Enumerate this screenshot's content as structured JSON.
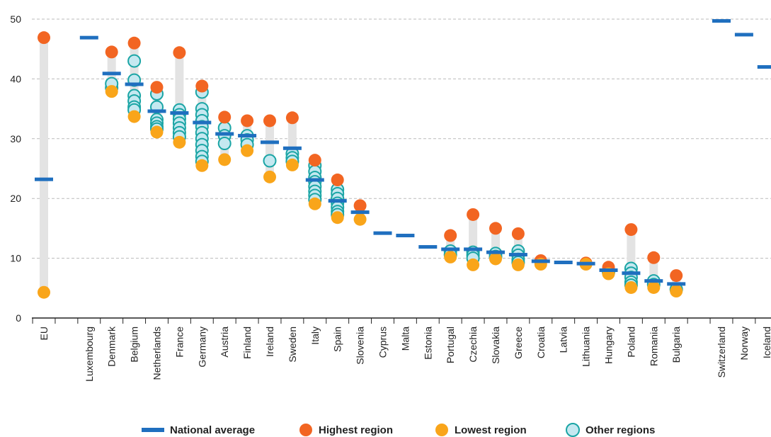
{
  "chart_data": {
    "type": "dot-range",
    "categories": [
      "EU",
      null,
      "Luxembourg",
      "Denmark",
      "Belgium",
      "Netherlands",
      "France",
      "Germany",
      "Austria",
      "Finland",
      "Ireland",
      "Sweden",
      "Italy",
      "Spain",
      "Slovenia",
      "Cyprus",
      "Malta",
      "Estonia",
      "Portugal",
      "Czechia",
      "Slovakia",
      "Greece",
      "Croatia",
      "Latvia",
      "Lithuania",
      "Hungary",
      "Poland",
      "Romania",
      "Bulgaria",
      null,
      "Switzerland",
      "Norway",
      "Iceland"
    ],
    "series": [
      {
        "name": "National average",
        "color": "#1f6fbf",
        "values": [
          23.2,
          null,
          46.9,
          40.9,
          39.1,
          34.6,
          34.3,
          32.7,
          30.8,
          30.5,
          29.4,
          28.4,
          23.1,
          19.6,
          17.7,
          14.2,
          13.8,
          11.9,
          11.5,
          11.5,
          11.0,
          10.6,
          9.5,
          9.3,
          9.1,
          8.0,
          7.5,
          6.2,
          5.7,
          null,
          49.7,
          47.4,
          42.0
        ]
      },
      {
        "name": "Highest region",
        "color": "#f26522",
        "values": [
          46.9,
          null,
          null,
          44.5,
          46.0,
          38.6,
          44.4,
          38.8,
          33.6,
          33.0,
          33.0,
          33.5,
          26.4,
          23.1,
          18.8,
          null,
          null,
          null,
          13.8,
          17.3,
          15.0,
          14.1,
          9.6,
          null,
          9.2,
          8.5,
          14.8,
          10.1,
          7.1,
          null,
          null,
          null,
          null
        ]
      },
      {
        "name": "Lowest region",
        "color": "#f9a51a",
        "values": [
          4.3,
          null,
          null,
          37.9,
          33.7,
          31.1,
          29.4,
          25.5,
          26.5,
          28.0,
          23.6,
          25.6,
          19.1,
          16.8,
          16.5,
          null,
          null,
          null,
          10.2,
          8.9,
          9.9,
          8.9,
          9.0,
          null,
          9.0,
          7.4,
          5.1,
          5.1,
          4.5,
          null,
          null,
          null,
          null
        ]
      },
      {
        "name": "Other regions",
        "color": "#c5e8f0",
        "stroke": "#1aa5a5",
        "values": [
          [],
          [],
          [],
          [
            38.5,
            39.2
          ],
          [
            43.0,
            39.8,
            37.2,
            36.3,
            35.3,
            34.8
          ],
          [
            37.5,
            35.3,
            33.2,
            32.6,
            32.0,
            31.6
          ],
          [
            34.8,
            34.0,
            33.3,
            32.6,
            31.8,
            31.0,
            30.3
          ],
          [
            37.8,
            35.0,
            34.0,
            33.0,
            32.0,
            31.0,
            30.0,
            29.0,
            28.0,
            27.0,
            26.2
          ],
          [
            31.8,
            30.5,
            29.2
          ],
          [
            30.5,
            29.8,
            29.0
          ],
          [
            26.3
          ],
          [
            27.5,
            26.8,
            26.2
          ],
          [
            25.5,
            24.5,
            23.5,
            22.8,
            22.0,
            21.2,
            20.5,
            19.8
          ],
          [
            21.5,
            20.8,
            20.0,
            19.2,
            18.5,
            17.8,
            17.3
          ],
          [],
          [],
          [],
          [],
          [
            11.2,
            10.6
          ],
          [
            11.0,
            10.5,
            10.0
          ],
          [
            10.8,
            10.3
          ],
          [
            11.2,
            10.5,
            9.8,
            9.3
          ],
          [],
          [],
          [],
          [
            7.7
          ],
          [
            8.3,
            7.5,
            6.8,
            6.0,
            5.5
          ],
          [
            6.2,
            5.6
          ],
          [
            4.8
          ],
          [],
          [],
          [],
          []
        ]
      }
    ],
    "ylim": [
      0,
      50
    ],
    "yticks": [
      0,
      10,
      20,
      30,
      40,
      50
    ],
    "grid": true
  }
}
